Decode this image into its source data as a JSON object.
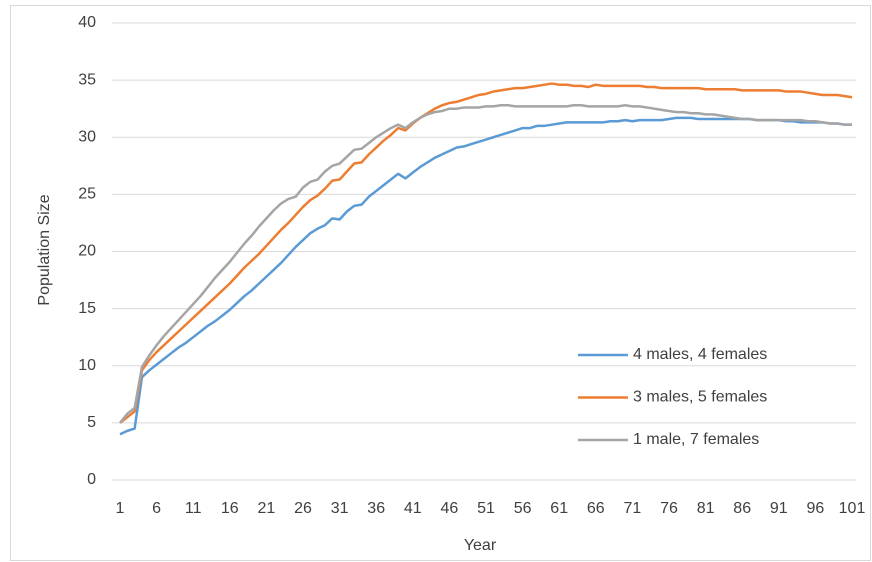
{
  "chart_data": {
    "type": "line",
    "x_label": "Year",
    "y_label": "Population Size",
    "x": [
      1,
      2,
      3,
      4,
      5,
      6,
      7,
      8,
      9,
      10,
      11,
      12,
      13,
      14,
      15,
      16,
      17,
      18,
      19,
      20,
      21,
      22,
      23,
      24,
      25,
      26,
      27,
      28,
      29,
      30,
      31,
      32,
      33,
      34,
      35,
      36,
      37,
      38,
      39,
      40,
      41,
      42,
      43,
      44,
      45,
      46,
      47,
      48,
      49,
      50,
      51,
      52,
      53,
      54,
      55,
      56,
      57,
      58,
      59,
      60,
      61,
      62,
      63,
      64,
      65,
      66,
      67,
      68,
      69,
      70,
      71,
      72,
      73,
      74,
      75,
      76,
      77,
      78,
      79,
      80,
      81,
      82,
      83,
      84,
      85,
      86,
      87,
      88,
      89,
      90,
      91,
      92,
      93,
      94,
      95,
      96,
      97,
      98,
      99,
      100,
      101
    ],
    "xlim": [
      1,
      101
    ],
    "xticks": [
      1,
      6,
      11,
      16,
      21,
      26,
      31,
      36,
      41,
      46,
      51,
      56,
      61,
      66,
      71,
      76,
      81,
      86,
      91,
      96,
      101
    ],
    "ylim": [
      0,
      40
    ],
    "yticks": [
      0,
      5,
      10,
      15,
      20,
      25,
      30,
      35,
      40
    ],
    "grid": true,
    "legend": "lower right",
    "series": [
      {
        "name": "4 males, 4 females",
        "color": "#5b9bd5",
        "values": [
          4.0,
          4.3,
          4.5,
          9.0,
          9.6,
          10.1,
          10.6,
          11.1,
          11.6,
          12.0,
          12.5,
          13.0,
          13.5,
          13.9,
          14.4,
          14.9,
          15.5,
          16.1,
          16.6,
          17.2,
          17.8,
          18.4,
          19.0,
          19.7,
          20.4,
          21.0,
          21.6,
          22.0,
          22.3,
          22.9,
          22.8,
          23.5,
          24.0,
          24.1,
          24.8,
          25.3,
          25.8,
          26.3,
          26.8,
          26.4,
          26.9,
          27.4,
          27.8,
          28.2,
          28.5,
          28.8,
          29.1,
          29.2,
          29.4,
          29.6,
          29.8,
          30.0,
          30.2,
          30.4,
          30.6,
          30.8,
          30.8,
          31.0,
          31.0,
          31.1,
          31.2,
          31.3,
          31.3,
          31.3,
          31.3,
          31.3,
          31.3,
          31.4,
          31.4,
          31.5,
          31.4,
          31.5,
          31.5,
          31.5,
          31.5,
          31.6,
          31.7,
          31.7,
          31.7,
          31.6,
          31.6,
          31.6,
          31.6,
          31.6,
          31.6,
          31.6,
          31.6,
          31.5,
          31.5,
          31.5,
          31.5,
          31.4,
          31.4,
          31.3,
          31.3,
          31.3,
          31.3,
          31.2,
          31.2,
          31.1,
          31.1
        ]
      },
      {
        "name": "3 males, 5 females",
        "color": "#ed7d31",
        "values": [
          5.0,
          5.5,
          6.0,
          9.6,
          10.5,
          11.2,
          11.8,
          12.4,
          13.0,
          13.6,
          14.2,
          14.8,
          15.4,
          16.0,
          16.6,
          17.2,
          17.9,
          18.6,
          19.2,
          19.8,
          20.5,
          21.2,
          21.9,
          22.5,
          23.2,
          23.9,
          24.5,
          24.9,
          25.5,
          26.2,
          26.3,
          27.0,
          27.7,
          27.8,
          28.5,
          29.1,
          29.7,
          30.2,
          30.8,
          30.6,
          31.2,
          31.7,
          32.1,
          32.5,
          32.8,
          33.0,
          33.1,
          33.3,
          33.5,
          33.7,
          33.8,
          34.0,
          34.1,
          34.2,
          34.3,
          34.3,
          34.4,
          34.5,
          34.6,
          34.7,
          34.6,
          34.6,
          34.5,
          34.5,
          34.4,
          34.6,
          34.5,
          34.5,
          34.5,
          34.5,
          34.5,
          34.5,
          34.4,
          34.4,
          34.3,
          34.3,
          34.3,
          34.3,
          34.3,
          34.3,
          34.2,
          34.2,
          34.2,
          34.2,
          34.2,
          34.1,
          34.1,
          34.1,
          34.1,
          34.1,
          34.1,
          34.0,
          34.0,
          34.0,
          33.9,
          33.8,
          33.7,
          33.7,
          33.7,
          33.6,
          33.5
        ]
      },
      {
        "name": "1 male, 7 females",
        "color": "#a5a5a5",
        "values": [
          5.0,
          5.8,
          6.3,
          9.9,
          10.9,
          11.8,
          12.6,
          13.3,
          14.0,
          14.7,
          15.4,
          16.1,
          16.9,
          17.7,
          18.4,
          19.1,
          19.9,
          20.7,
          21.4,
          22.2,
          22.9,
          23.6,
          24.2,
          24.6,
          24.8,
          25.6,
          26.1,
          26.3,
          27.0,
          27.5,
          27.7,
          28.3,
          28.9,
          29.0,
          29.5,
          30.0,
          30.4,
          30.8,
          31.1,
          30.8,
          31.3,
          31.7,
          32.0,
          32.2,
          32.3,
          32.5,
          32.5,
          32.6,
          32.6,
          32.6,
          32.7,
          32.7,
          32.8,
          32.8,
          32.7,
          32.7,
          32.7,
          32.7,
          32.7,
          32.7,
          32.7,
          32.7,
          32.8,
          32.8,
          32.7,
          32.7,
          32.7,
          32.7,
          32.7,
          32.8,
          32.7,
          32.7,
          32.6,
          32.5,
          32.4,
          32.3,
          32.2,
          32.2,
          32.1,
          32.1,
          32.0,
          32.0,
          31.9,
          31.8,
          31.7,
          31.6,
          31.6,
          31.5,
          31.5,
          31.5,
          31.5,
          31.5,
          31.5,
          31.5,
          31.4,
          31.4,
          31.3,
          31.2,
          31.2,
          31.1,
          31.1
        ]
      }
    ]
  }
}
